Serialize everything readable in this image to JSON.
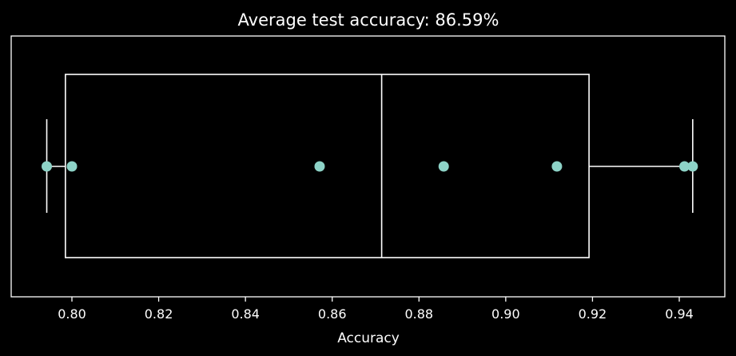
{
  "chart_data": {
    "type": "boxplot",
    "orientation": "horizontal",
    "title": "Average test accuracy: 86.59%",
    "xlabel": "Accuracy",
    "ylabel": "",
    "xlim": [
      0.786,
      0.9505
    ],
    "xticks": [
      "0.80",
      "0.82",
      "0.84",
      "0.86",
      "0.88",
      "0.90",
      "0.92",
      "0.94"
    ],
    "xtick_values": [
      0.8,
      0.82,
      0.84,
      0.86,
      0.88,
      0.9,
      0.92,
      0.94
    ],
    "box": {
      "whisker_low": 0.7942,
      "q1": 0.7985,
      "median": 0.8714,
      "q3": 0.9192,
      "whisker_high": 0.9431
    },
    "points": [
      0.7942,
      0.8,
      0.8571,
      0.8857,
      0.9118,
      0.9412,
      0.9431
    ],
    "grid": false,
    "colors": {
      "background": "#000000",
      "box": "#ffffff",
      "points": "#8dd3c7"
    }
  }
}
